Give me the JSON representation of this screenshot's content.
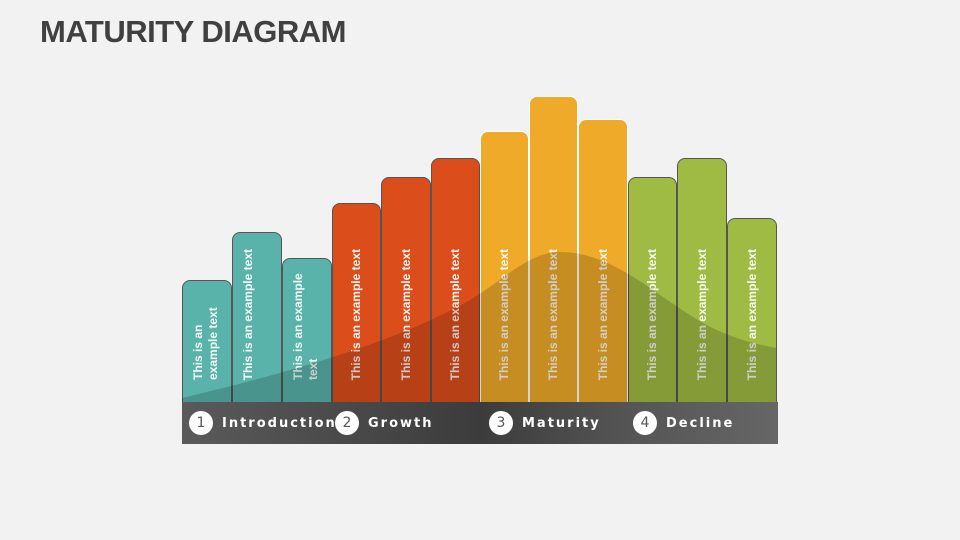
{
  "title": "MATURITY DIAGRAM",
  "colors": {
    "introduction": "#5ab3ab",
    "growth": "#dc4d1c",
    "maturity": "#efaa2a",
    "decline": "#a0bb44"
  },
  "bars": [
    {
      "text": "This is an example text",
      "stage": "introduction"
    },
    {
      "text": "This is an example text",
      "stage": "introduction"
    },
    {
      "text": "This is an example text",
      "stage": "introduction"
    },
    {
      "text": "This is an example text",
      "stage": "growth"
    },
    {
      "text": "This is an example text",
      "stage": "growth"
    },
    {
      "text": "This is an example text",
      "stage": "growth"
    },
    {
      "text": "This is an example text",
      "stage": "maturity"
    },
    {
      "text": "This is an example text",
      "stage": "maturity"
    },
    {
      "text": "This is an example text",
      "stage": "maturity"
    },
    {
      "text": "This is an example text",
      "stage": "decline"
    },
    {
      "text": "This is an example text",
      "stage": "decline"
    },
    {
      "text": "This is an example text",
      "stage": "decline"
    }
  ],
  "stages": [
    {
      "num": "1",
      "label": "Introduction"
    },
    {
      "num": "2",
      "label": "Growth"
    },
    {
      "num": "3",
      "label": "Maturity"
    },
    {
      "num": "4",
      "label": "Decline"
    }
  ]
}
